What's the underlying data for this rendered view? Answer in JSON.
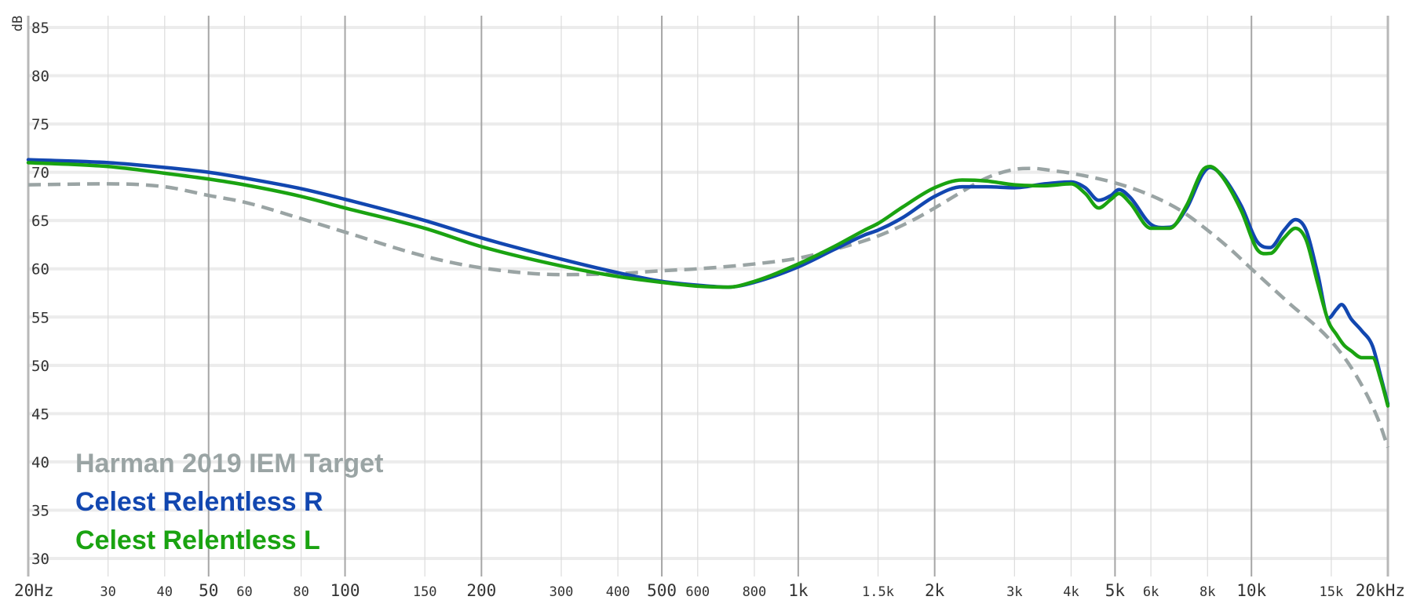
{
  "chart_data": {
    "type": "line",
    "yunit": "dB",
    "xscale": "log",
    "xlim": [
      20,
      20000
    ],
    "ylim": [
      30,
      85
    ],
    "yticks": [
      {
        "value": 30,
        "label": "30"
      },
      {
        "value": 35,
        "label": "35"
      },
      {
        "value": 40,
        "label": "40"
      },
      {
        "value": 45,
        "label": "45"
      },
      {
        "value": 50,
        "label": "50"
      },
      {
        "value": 55,
        "label": "55"
      },
      {
        "value": 60,
        "label": "60"
      },
      {
        "value": 65,
        "label": "65"
      },
      {
        "value": 70,
        "label": "70"
      },
      {
        "value": 75,
        "label": "75"
      },
      {
        "value": 80,
        "label": "80"
      },
      {
        "value": 85,
        "label": "85"
      }
    ],
    "xticks": [
      {
        "value": 20,
        "label": "20Hz",
        "major": true
      },
      {
        "value": 30,
        "label": "30",
        "major": false
      },
      {
        "value": 40,
        "label": "40",
        "major": false
      },
      {
        "value": 50,
        "label": "50",
        "major": true
      },
      {
        "value": 60,
        "label": "60",
        "major": false
      },
      {
        "value": 80,
        "label": "80",
        "major": false
      },
      {
        "value": 100,
        "label": "100",
        "major": true
      },
      {
        "value": 150,
        "label": "150",
        "major": false
      },
      {
        "value": 200,
        "label": "200",
        "major": true
      },
      {
        "value": 300,
        "label": "300",
        "major": false
      },
      {
        "value": 400,
        "label": "400",
        "major": false
      },
      {
        "value": 500,
        "label": "500",
        "major": true
      },
      {
        "value": 600,
        "label": "600",
        "major": false
      },
      {
        "value": 800,
        "label": "800",
        "major": false
      },
      {
        "value": 1000,
        "label": "1k",
        "major": true
      },
      {
        "value": 1500,
        "label": "1.5k",
        "major": false
      },
      {
        "value": 2000,
        "label": "2k",
        "major": true
      },
      {
        "value": 3000,
        "label": "3k",
        "major": false
      },
      {
        "value": 4000,
        "label": "4k",
        "major": false
      },
      {
        "value": 5000,
        "label": "5k",
        "major": true
      },
      {
        "value": 6000,
        "label": "6k",
        "major": false
      },
      {
        "value": 8000,
        "label": "8k",
        "major": false
      },
      {
        "value": 10000,
        "label": "10k",
        "major": true
      },
      {
        "value": 15000,
        "label": "15k",
        "major": false
      },
      {
        "value": 20000,
        "label": "20kHz",
        "major": true
      }
    ],
    "grid": true,
    "legend_position": "bottom-left",
    "series": [
      {
        "name": "Harman 2019 IEM Target",
        "color": "#9aa4a4",
        "dash": true,
        "points": [
          [
            20,
            68.7
          ],
          [
            30,
            68.8
          ],
          [
            40,
            68.5
          ],
          [
            50,
            67.6
          ],
          [
            60,
            66.9
          ],
          [
            80,
            65.2
          ],
          [
            100,
            63.8
          ],
          [
            150,
            61.3
          ],
          [
            200,
            60.1
          ],
          [
            300,
            59.4
          ],
          [
            400,
            59.5
          ],
          [
            500,
            59.8
          ],
          [
            600,
            60.0
          ],
          [
            800,
            60.5
          ],
          [
            1000,
            61.1
          ],
          [
            1200,
            62.0
          ],
          [
            1500,
            63.4
          ],
          [
            1800,
            65.1
          ],
          [
            2000,
            66.3
          ],
          [
            2300,
            68.0
          ],
          [
            2600,
            69.4
          ],
          [
            3000,
            70.3
          ],
          [
            3300,
            70.4
          ],
          [
            3600,
            70.2
          ],
          [
            4000,
            69.9
          ],
          [
            5000,
            68.9
          ],
          [
            6000,
            67.6
          ],
          [
            7000,
            66.0
          ],
          [
            8000,
            64.0
          ],
          [
            9000,
            62.0
          ],
          [
            10000,
            60.0
          ],
          [
            12000,
            56.6
          ],
          [
            15000,
            52.5
          ],
          [
            17000,
            49.0
          ],
          [
            19000,
            44.5
          ],
          [
            20000,
            41.5
          ]
        ]
      },
      {
        "name": "Celest Relentless R",
        "color": "#1247b0",
        "dash": false,
        "points": [
          [
            20,
            71.3
          ],
          [
            30,
            71.0
          ],
          [
            40,
            70.5
          ],
          [
            50,
            70.0
          ],
          [
            60,
            69.4
          ],
          [
            80,
            68.3
          ],
          [
            100,
            67.2
          ],
          [
            150,
            65.0
          ],
          [
            200,
            63.2
          ],
          [
            300,
            61.0
          ],
          [
            400,
            59.6
          ],
          [
            500,
            58.7
          ],
          [
            600,
            58.3
          ],
          [
            700,
            58.1
          ],
          [
            800,
            58.6
          ],
          [
            1000,
            60.2
          ],
          [
            1200,
            62.0
          ],
          [
            1400,
            63.5
          ],
          [
            1500,
            64.0
          ],
          [
            1700,
            65.3
          ],
          [
            2000,
            67.5
          ],
          [
            2300,
            68.5
          ],
          [
            2600,
            68.5
          ],
          [
            3000,
            68.4
          ],
          [
            3500,
            68.8
          ],
          [
            4000,
            69.0
          ],
          [
            4300,
            68.4
          ],
          [
            4600,
            67.1
          ],
          [
            4900,
            67.6
          ],
          [
            5100,
            68.2
          ],
          [
            5400,
            67.4
          ],
          [
            6000,
            64.6
          ],
          [
            6600,
            64.3
          ],
          [
            7200,
            66.3
          ],
          [
            7800,
            69.8
          ],
          [
            8100,
            70.5
          ],
          [
            8600,
            69.7
          ],
          [
            9500,
            66.5
          ],
          [
            10300,
            62.8
          ],
          [
            11000,
            62.2
          ],
          [
            11800,
            64.0
          ],
          [
            12500,
            65.1
          ],
          [
            13200,
            64.0
          ],
          [
            14000,
            59.5
          ],
          [
            14800,
            54.9
          ],
          [
            15400,
            55.8
          ],
          [
            15800,
            56.3
          ],
          [
            16600,
            54.8
          ],
          [
            17500,
            53.6
          ],
          [
            18500,
            52.0
          ],
          [
            19300,
            48.8
          ],
          [
            20000,
            46.0
          ]
        ]
      },
      {
        "name": "Celest Relentless L",
        "color": "#1aa311",
        "dash": false,
        "points": [
          [
            20,
            71.0
          ],
          [
            30,
            70.6
          ],
          [
            40,
            69.9
          ],
          [
            50,
            69.3
          ],
          [
            60,
            68.7
          ],
          [
            80,
            67.5
          ],
          [
            100,
            66.3
          ],
          [
            150,
            64.2
          ],
          [
            200,
            62.3
          ],
          [
            300,
            60.3
          ],
          [
            400,
            59.2
          ],
          [
            500,
            58.6
          ],
          [
            600,
            58.2
          ],
          [
            700,
            58.1
          ],
          [
            800,
            58.7
          ],
          [
            1000,
            60.5
          ],
          [
            1200,
            62.3
          ],
          [
            1400,
            64.0
          ],
          [
            1500,
            64.7
          ],
          [
            1700,
            66.4
          ],
          [
            2000,
            68.4
          ],
          [
            2300,
            69.2
          ],
          [
            2600,
            69.1
          ],
          [
            3000,
            68.7
          ],
          [
            3500,
            68.6
          ],
          [
            4000,
            68.8
          ],
          [
            4300,
            67.8
          ],
          [
            4600,
            66.3
          ],
          [
            4900,
            67.2
          ],
          [
            5100,
            67.8
          ],
          [
            5400,
            66.8
          ],
          [
            6000,
            64.2
          ],
          [
            6600,
            64.2
          ],
          [
            7200,
            66.6
          ],
          [
            7800,
            70.2
          ],
          [
            8100,
            70.6
          ],
          [
            8600,
            69.6
          ],
          [
            9500,
            66.0
          ],
          [
            10300,
            62.0
          ],
          [
            11000,
            61.6
          ],
          [
            11800,
            63.2
          ],
          [
            12500,
            64.2
          ],
          [
            13200,
            63.0
          ],
          [
            14000,
            58.5
          ],
          [
            14800,
            54.5
          ],
          [
            15400,
            53.2
          ],
          [
            16000,
            52.1
          ],
          [
            16600,
            51.5
          ],
          [
            17500,
            50.8
          ],
          [
            18500,
            50.8
          ],
          [
            19300,
            48.5
          ],
          [
            20000,
            45.8
          ]
        ]
      }
    ]
  }
}
